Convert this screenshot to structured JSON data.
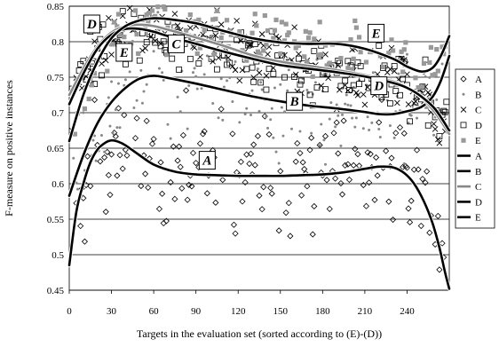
{
  "chart_data": {
    "type": "scatter",
    "title": "",
    "xlabel": "Targets in the evaluation set (sorted according to (E)-(D))",
    "ylabel": "F-measure on positive instances",
    "xlim": [
      0,
      270
    ],
    "ylim": [
      0.45,
      0.85
    ],
    "x_ticks": [
      0,
      30,
      60,
      90,
      120,
      150,
      180,
      210,
      240
    ],
    "y_ticks": [
      0.45,
      0.5,
      0.55,
      0.6,
      0.65,
      0.7,
      0.75,
      0.8,
      0.85
    ],
    "grid": "horizontal",
    "legend_position": "right",
    "series": [
      {
        "name": "A",
        "kind": "points",
        "marker": "diamond",
        "color": "#000000",
        "color_name": "black",
        "mean_curve": "A",
        "spread": 0.065,
        "seed": 11
      },
      {
        "name": "B",
        "kind": "points",
        "marker": "dot",
        "color": "#888888",
        "color_name": "gray",
        "mean_curve": "B",
        "spread": 0.05,
        "seed": 23
      },
      {
        "name": "C",
        "kind": "points",
        "marker": "x",
        "color": "#000000",
        "color_name": "black",
        "mean_curve": "C",
        "spread": 0.035,
        "seed": 37
      },
      {
        "name": "D",
        "kind": "points",
        "marker": "square",
        "color": "#000000",
        "color_name": "black",
        "mean_curve": "D",
        "spread": 0.035,
        "seed": 41
      },
      {
        "name": "E",
        "kind": "points",
        "marker": "asterisk",
        "color": "#999999",
        "color_name": "gray",
        "mean_curve": "E",
        "spread": 0.035,
        "seed": 53
      },
      {
        "name": "A",
        "kind": "trend",
        "color": "#000000",
        "color_name": "black",
        "x": [
          0,
          5,
          10,
          15,
          20,
          25,
          30,
          35,
          40,
          50,
          60,
          75,
          90,
          105,
          120,
          135,
          150,
          165,
          180,
          195,
          210,
          220,
          230,
          238,
          245,
          252,
          258,
          263,
          267,
          270
        ],
        "y": [
          0.485,
          0.56,
          0.6,
          0.63,
          0.648,
          0.657,
          0.661,
          0.659,
          0.654,
          0.64,
          0.627,
          0.617,
          0.613,
          0.612,
          0.611,
          0.611,
          0.611,
          0.612,
          0.613,
          0.616,
          0.621,
          0.624,
          0.623,
          0.615,
          0.6,
          0.575,
          0.545,
          0.51,
          0.475,
          0.452
        ]
      },
      {
        "name": "B",
        "kind": "trend",
        "color": "#000000",
        "color_name": "black",
        "x": [
          0,
          10,
          20,
          30,
          40,
          50,
          60,
          70,
          90,
          110,
          130,
          150,
          170,
          190,
          210,
          220,
          230,
          240,
          250,
          258,
          264,
          270
        ],
        "y": [
          0.583,
          0.64,
          0.685,
          0.715,
          0.735,
          0.748,
          0.752,
          0.749,
          0.741,
          0.732,
          0.723,
          0.716,
          0.71,
          0.706,
          0.701,
          0.698,
          0.698,
          0.702,
          0.708,
          0.722,
          0.745,
          0.78
        ]
      },
      {
        "name": "C",
        "kind": "trend",
        "color": "#888888",
        "color_name": "gray",
        "x": [
          0,
          10,
          20,
          30,
          40,
          50,
          60,
          70,
          90,
          110,
          130,
          150,
          170,
          190,
          210,
          230,
          240,
          250,
          260,
          270
        ],
        "y": [
          0.725,
          0.762,
          0.793,
          0.813,
          0.822,
          0.824,
          0.822,
          0.817,
          0.806,
          0.794,
          0.781,
          0.772,
          0.766,
          0.76,
          0.753,
          0.744,
          0.736,
          0.722,
          0.7,
          0.67
        ]
      },
      {
        "name": "D",
        "kind": "trend",
        "color": "#000000",
        "color_name": "black",
        "x": [
          0,
          10,
          20,
          30,
          40,
          50,
          60,
          70,
          90,
          110,
          130,
          150,
          170,
          190,
          210,
          230,
          240,
          250,
          260,
          270
        ],
        "y": [
          0.712,
          0.755,
          0.79,
          0.81,
          0.818,
          0.818,
          0.814,
          0.808,
          0.797,
          0.786,
          0.776,
          0.767,
          0.762,
          0.757,
          0.751,
          0.742,
          0.735,
          0.723,
          0.705,
          0.675
        ]
      },
      {
        "name": "E",
        "kind": "trend",
        "color": "#000000",
        "color_name": "black",
        "x": [
          0,
          10,
          20,
          30,
          40,
          50,
          60,
          70,
          90,
          110,
          130,
          150,
          170,
          190,
          210,
          230,
          240,
          250,
          258,
          264,
          270
        ],
        "y": [
          0.66,
          0.725,
          0.772,
          0.805,
          0.822,
          0.83,
          0.833,
          0.832,
          0.826,
          0.815,
          0.805,
          0.799,
          0.797,
          0.797,
          0.79,
          0.776,
          0.765,
          0.758,
          0.763,
          0.78,
          0.808
        ]
      }
    ],
    "annotations": [
      {
        "text": "A",
        "x": 98,
        "y": 0.633
      },
      {
        "text": "B",
        "x": 160,
        "y": 0.716
      },
      {
        "text": "C",
        "x": 76,
        "y": 0.797
      },
      {
        "text": "D",
        "x": 16,
        "y": 0.825
      },
      {
        "text": "D",
        "x": 220,
        "y": 0.738
      },
      {
        "text": "E",
        "x": 39,
        "y": 0.785
      },
      {
        "text": "E",
        "x": 218,
        "y": 0.812
      }
    ]
  }
}
